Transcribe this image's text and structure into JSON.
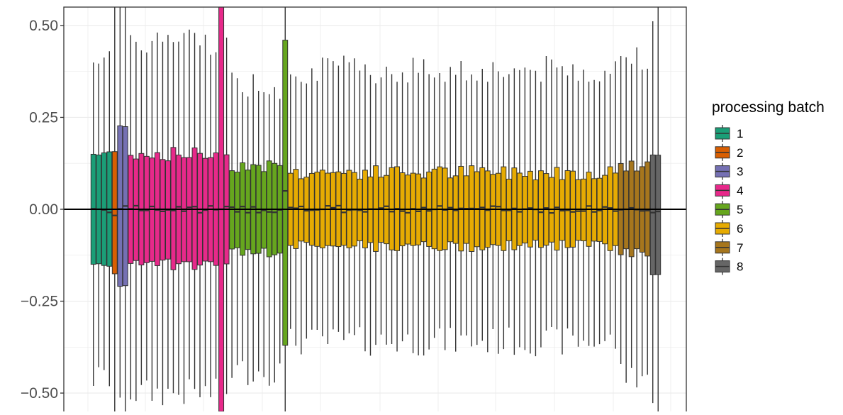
{
  "chart_data": {
    "type": "box",
    "title": "",
    "xlabel": "",
    "ylabel": "",
    "ylim": [
      -0.55,
      0.55
    ],
    "yticks": [
      0.5,
      0.25,
      0.0,
      -0.25,
      -0.5
    ],
    "ytick_labels": [
      "0.50",
      "0.25",
      "0.00",
      "−0.25",
      "−0.50"
    ],
    "grid": true,
    "reference_line_y": 0,
    "legend": {
      "title": "processing batch",
      "position": "right",
      "entries": [
        {
          "label": "1",
          "color": "#1B9E77"
        },
        {
          "label": "2",
          "color": "#D95F02"
        },
        {
          "label": "3",
          "color": "#7570B3"
        },
        {
          "label": "4",
          "color": "#E7298A"
        },
        {
          "label": "5",
          "color": "#66A61E"
        },
        {
          "label": "6",
          "color": "#E6AB02"
        },
        {
          "label": "7",
          "color": "#A6761D"
        },
        {
          "label": "8",
          "color": "#666666"
        }
      ]
    },
    "batch_box_counts": [
      {
        "batch": "1",
        "count": 4
      },
      {
        "batch": "2",
        "count": 1
      },
      {
        "batch": "3",
        "count": 2
      },
      {
        "batch": "4",
        "count": 19
      },
      {
        "batch": "5",
        "count": 11
      },
      {
        "batch": "6",
        "count": 62
      },
      {
        "batch": "7",
        "count": 6
      },
      {
        "batch": "8",
        "count": 2
      }
    ],
    "representative_boxes": [
      {
        "batch": "1",
        "q1": -0.15,
        "median": 0.0,
        "q3": 0.15,
        "lower": -0.46,
        "upper": 0.43
      },
      {
        "batch": "2",
        "q1": -0.17,
        "median": -0.01,
        "q3": 0.15,
        "lower": -0.55,
        "upper": 0.55
      },
      {
        "batch": "3",
        "q1": -0.22,
        "median": 0.01,
        "q3": 0.24,
        "lower": -0.55,
        "upper": 0.55
      },
      {
        "batch": "4",
        "q1": -0.15,
        "median": 0.0,
        "q3": 0.15,
        "lower": -0.5,
        "upper": 0.46
      },
      {
        "batch": "4 (tall box)",
        "q1": -0.55,
        "median": 0.0,
        "q3": 0.55,
        "lower": -0.55,
        "upper": 0.55
      },
      {
        "batch": "5",
        "q1": -0.12,
        "median": 0.0,
        "q3": 0.12,
        "lower": -0.44,
        "upper": 0.34
      },
      {
        "batch": "5 (tall box)",
        "q1": -0.37,
        "median": 0.05,
        "q3": 0.46,
        "lower": -0.55,
        "upper": 0.55
      },
      {
        "batch": "6",
        "q1": -0.1,
        "median": 0.0,
        "q3": 0.1,
        "lower": -0.36,
        "upper": 0.38
      },
      {
        "batch": "7",
        "q1": -0.12,
        "median": 0.0,
        "q3": 0.12,
        "lower": -0.45,
        "upper": 0.42
      },
      {
        "batch": "8",
        "q1": -0.18,
        "median": -0.01,
        "q3": 0.15,
        "lower": -0.55,
        "upper": 0.55
      }
    ]
  }
}
